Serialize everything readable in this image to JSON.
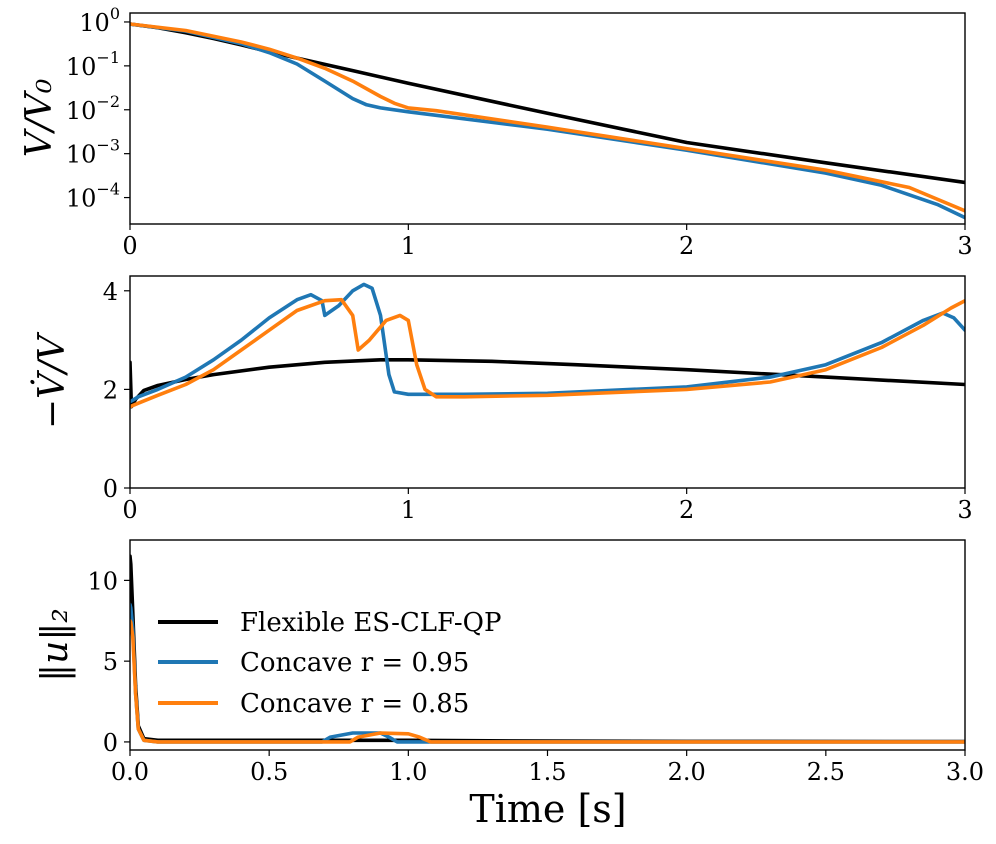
{
  "chart_data": [
    {
      "type": "line",
      "panel": "top",
      "ylabel": "V/V₀",
      "yscale": "log",
      "xlim": [
        0,
        3
      ],
      "ylim": [
        2.5e-05,
        1.6
      ],
      "xticks": [
        "0",
        "1",
        "2",
        "3"
      ],
      "yticks": [
        {
          "value": 1,
          "mantissa": "10",
          "exp": "0"
        },
        {
          "value": 0.1,
          "mantissa": "10",
          "exp": "−1"
        },
        {
          "value": 0.01,
          "mantissa": "10",
          "exp": "−2"
        },
        {
          "value": 0.001,
          "mantissa": "10",
          "exp": "−3"
        },
        {
          "value": 0.0001,
          "mantissa": "10",
          "exp": "−4"
        }
      ],
      "series": [
        {
          "name": "Flexible ES-CLF-QP",
          "color": "#000000",
          "x": [
            0,
            0.1,
            0.2,
            0.3,
            0.4,
            0.5,
            0.6,
            0.8,
            1.0,
            1.5,
            2.0,
            2.5,
            3.0
          ],
          "y": [
            0.9,
            0.74,
            0.57,
            0.42,
            0.3,
            0.21,
            0.15,
            0.078,
            0.04,
            0.0083,
            0.0018,
            0.00062,
            0.00022
          ]
        },
        {
          "name": "Concave r = 0.95",
          "color": "#1f77b4",
          "x": [
            0,
            0.2,
            0.4,
            0.5,
            0.6,
            0.7,
            0.8,
            0.85,
            0.9,
            1.0,
            1.5,
            2.0,
            2.5,
            2.7,
            2.9,
            3.0
          ],
          "y": [
            0.9,
            0.62,
            0.32,
            0.2,
            0.11,
            0.045,
            0.018,
            0.013,
            0.011,
            0.009,
            0.0036,
            0.0012,
            0.00036,
            0.00019,
            7e-05,
            3.5e-05
          ]
        },
        {
          "name": "Concave r = 0.85",
          "color": "#ff7f0e",
          "x": [
            0,
            0.2,
            0.4,
            0.5,
            0.6,
            0.7,
            0.8,
            0.9,
            0.95,
            1.0,
            1.1,
            1.5,
            2.0,
            2.5,
            2.8,
            3.0
          ],
          "y": [
            0.9,
            0.64,
            0.35,
            0.24,
            0.15,
            0.088,
            0.045,
            0.02,
            0.014,
            0.011,
            0.0095,
            0.004,
            0.0013,
            0.00042,
            0.00017,
            5e-05
          ]
        }
      ]
    },
    {
      "type": "line",
      "panel": "middle",
      "ylabel": "−V̇/V",
      "xlim": [
        0,
        3
      ],
      "ylim": [
        0,
        4.3
      ],
      "xticks": [
        "0",
        "1",
        "2",
        "3"
      ],
      "yticks": [
        "0",
        "2",
        "4"
      ],
      "series": [
        {
          "name": "Flexible ES-CLF-QP",
          "color": "#000000",
          "x": [
            0,
            0.005,
            0.02,
            0.05,
            0.1,
            0.2,
            0.3,
            0.5,
            0.7,
            0.9,
            1.0,
            1.3,
            1.6,
            2.0,
            2.5,
            3.0
          ],
          "y": [
            2.55,
            1.65,
            1.8,
            1.98,
            2.08,
            2.2,
            2.3,
            2.45,
            2.55,
            2.6,
            2.6,
            2.57,
            2.5,
            2.4,
            2.25,
            2.1
          ]
        },
        {
          "name": "Concave r = 0.95",
          "color": "#1f77b4",
          "x": [
            0,
            0.01,
            0.03,
            0.1,
            0.2,
            0.3,
            0.4,
            0.5,
            0.6,
            0.65,
            0.69,
            0.7,
            0.75,
            0.8,
            0.84,
            0.87,
            0.9,
            0.93,
            0.95,
            1.0,
            1.2,
            1.5,
            2.0,
            2.3,
            2.5,
            2.7,
            2.85,
            2.92,
            2.96,
            3.0
          ],
          "y": [
            1.75,
            1.78,
            1.85,
            2.0,
            2.25,
            2.6,
            3.0,
            3.45,
            3.82,
            3.92,
            3.8,
            3.5,
            3.7,
            4.0,
            4.13,
            4.05,
            3.5,
            2.3,
            1.95,
            1.9,
            1.9,
            1.92,
            2.05,
            2.25,
            2.5,
            2.95,
            3.4,
            3.55,
            3.45,
            3.2
          ]
        },
        {
          "name": "Concave r = 0.85",
          "color": "#ff7f0e",
          "x": [
            0,
            0.03,
            0.1,
            0.2,
            0.3,
            0.4,
            0.5,
            0.6,
            0.7,
            0.76,
            0.8,
            0.82,
            0.86,
            0.92,
            0.97,
            1.0,
            1.03,
            1.06,
            1.1,
            1.2,
            1.5,
            2.0,
            2.3,
            2.5,
            2.7,
            2.85,
            2.95,
            3.0
          ],
          "y": [
            1.65,
            1.72,
            1.88,
            2.1,
            2.4,
            2.8,
            3.2,
            3.6,
            3.8,
            3.82,
            3.5,
            2.8,
            3.0,
            3.4,
            3.5,
            3.4,
            2.5,
            2.0,
            1.85,
            1.85,
            1.88,
            2.0,
            2.15,
            2.4,
            2.85,
            3.3,
            3.65,
            3.8
          ]
        }
      ]
    },
    {
      "type": "line",
      "panel": "bottom",
      "ylabel": "‖u‖₂",
      "xlabel": "Time [s]",
      "xlim": [
        0,
        3
      ],
      "ylim": [
        -0.5,
        12.5
      ],
      "xticks": [
        "0.0",
        "0.5",
        "1.0",
        "1.5",
        "2.0",
        "2.5",
        "3.0"
      ],
      "yticks": [
        "0",
        "5",
        "10"
      ],
      "legend": {
        "position": "center-left",
        "entries": [
          "Flexible ES-CLF-QP",
          "Concave r = 0.95",
          "Concave r = 0.85"
        ]
      },
      "series": [
        {
          "name": "Flexible ES-CLF-QP",
          "color": "#000000",
          "x": [
            0,
            0.003,
            0.01,
            0.02,
            0.03,
            0.05,
            0.1,
            0.5,
            1.0,
            1.5,
            2.0,
            3.0
          ],
          "y": [
            11.5,
            11.0,
            8.0,
            3.5,
            1.0,
            0.2,
            0.1,
            0.1,
            0.1,
            0.05,
            0.03,
            0.02
          ]
        },
        {
          "name": "Concave r = 0.95",
          "color": "#1f77b4",
          "x": [
            0,
            0.003,
            0.01,
            0.02,
            0.03,
            0.05,
            0.1,
            0.69,
            0.72,
            0.8,
            0.9,
            0.93,
            0.96,
            1.0,
            2.0,
            3.0
          ],
          "y": [
            8.5,
            8.3,
            7.0,
            3.0,
            0.8,
            0.1,
            0.0,
            0.0,
            0.3,
            0.55,
            0.55,
            0.3,
            0.0,
            0.0,
            0.0,
            0.0
          ]
        },
        {
          "name": "Concave r = 0.85",
          "color": "#ff7f0e",
          "x": [
            0,
            0.003,
            0.01,
            0.02,
            0.03,
            0.05,
            0.1,
            0.79,
            0.82,
            0.9,
            1.0,
            1.04,
            1.08,
            1.1,
            2.0,
            3.0
          ],
          "y": [
            7.5,
            7.4,
            6.5,
            3.0,
            0.8,
            0.1,
            0.0,
            0.0,
            0.3,
            0.55,
            0.5,
            0.3,
            0.0,
            0.0,
            0.0,
            0.0
          ]
        }
      ]
    }
  ]
}
